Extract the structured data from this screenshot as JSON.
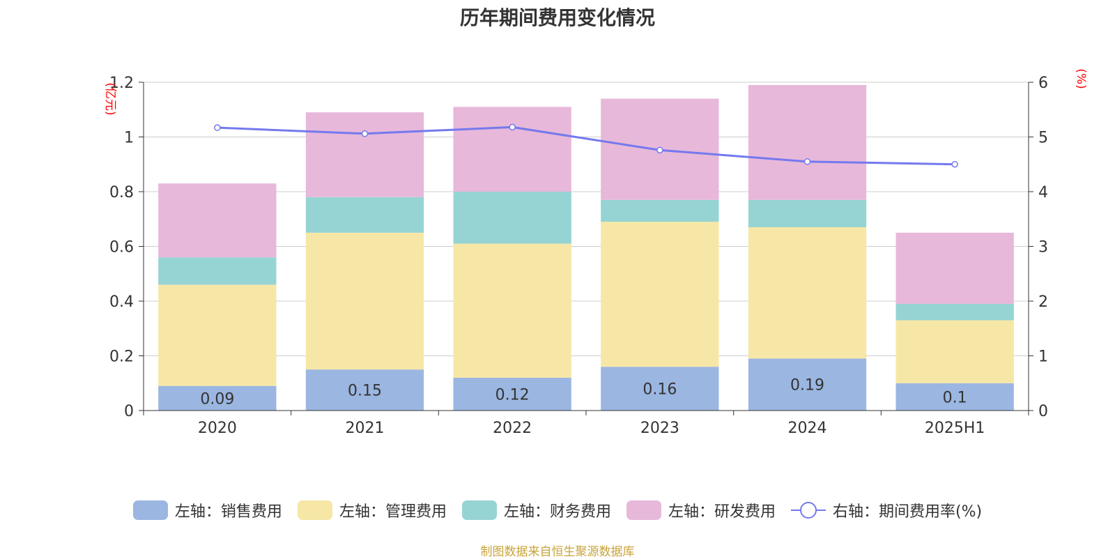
{
  "title": "历年期间费用变化情况",
  "source": "制图数据来自恒生聚源数据库",
  "colors": {
    "sales": "#9bb6e1",
    "admin": "#f7e7a6",
    "finance": "#96d4d4",
    "rd": "#e7b8d9",
    "rate": "#7479ee",
    "axis_unit": "#ff0000",
    "grid": "#cccccc",
    "text": "#333333"
  },
  "chart_data": {
    "type": "bar",
    "stacked": true,
    "title": "历年期间费用变化情况",
    "categories": [
      "2020",
      "2021",
      "2022",
      "2023",
      "2024",
      "2025H1"
    ],
    "y_left": {
      "unit_label": "(亿元)",
      "ylim": [
        0,
        1.2
      ],
      "ticks": [
        "0",
        "0.2",
        "0.4",
        "0.6",
        "0.8",
        "1",
        "1.2"
      ]
    },
    "y_right": {
      "unit_label": "(%)",
      "ylim": [
        0,
        6
      ],
      "ticks": [
        "0",
        "1",
        "2",
        "3",
        "4",
        "5",
        "6"
      ]
    },
    "grid": true,
    "legend_position": "bottom",
    "series": [
      {
        "name": "左轴：销售费用",
        "axis": "left",
        "color": "#9bb6e1",
        "values": [
          0.09,
          0.15,
          0.12,
          0.16,
          0.19,
          0.1
        ],
        "data_labels": [
          "0.09",
          "0.15",
          "0.12",
          "0.16",
          "0.19",
          "0.1"
        ]
      },
      {
        "name": "左轴：管理费用",
        "axis": "left",
        "color": "#f7e7a6",
        "values": [
          0.37,
          0.5,
          0.49,
          0.53,
          0.48,
          0.23
        ]
      },
      {
        "name": "左轴：财务费用",
        "axis": "left",
        "color": "#96d4d4",
        "values": [
          0.1,
          0.13,
          0.19,
          0.08,
          0.1,
          0.06
        ]
      },
      {
        "name": "左轴：研发费用",
        "axis": "left",
        "color": "#e7b8d9",
        "values": [
          0.27,
          0.31,
          0.31,
          0.37,
          0.42,
          0.26
        ]
      },
      {
        "name": "右轴：期间费用率(%)",
        "axis": "right",
        "type": "line",
        "color": "#7479ee",
        "values": [
          5.17,
          5.06,
          5.18,
          4.76,
          4.55,
          4.5
        ]
      }
    ]
  }
}
